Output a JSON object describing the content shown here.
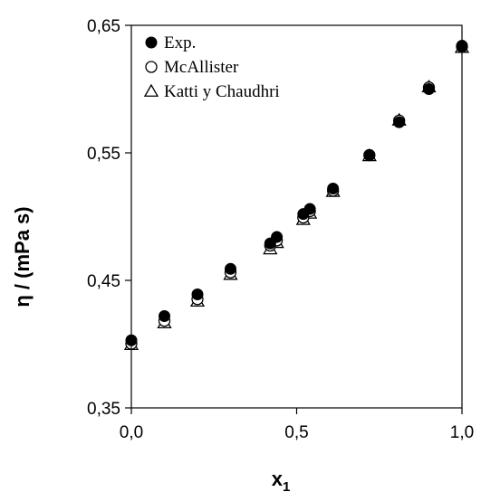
{
  "chart_data": {
    "type": "scatter",
    "xlabel": "x",
    "xlabel_sub": "1",
    "ylabel": "η / (mPa s)",
    "xlim": [
      0,
      1
    ],
    "ylim": [
      0.35,
      0.65
    ],
    "xticks": [
      0,
      0.5,
      1
    ],
    "xtick_labels": [
      "0,0",
      "0,5",
      "1,0"
    ],
    "yticks": [
      0.35,
      0.45,
      0.55,
      0.65
    ],
    "ytick_labels": [
      "0,35",
      "0,45",
      "0,55",
      "0,65"
    ],
    "grid": false,
    "legend_position": "top-left",
    "series": [
      {
        "name": "Exp.",
        "marker": "filled-circle",
        "color": "#000000",
        "x": [
          0.0,
          0.1,
          0.2,
          0.3,
          0.42,
          0.44,
          0.52,
          0.54,
          0.61,
          0.72,
          0.81,
          0.9,
          1.0
        ],
        "y": [
          0.403,
          0.422,
          0.439,
          0.459,
          0.479,
          0.484,
          0.502,
          0.506,
          0.522,
          0.548,
          0.574,
          0.6,
          0.634
        ]
      },
      {
        "name": "McAllister",
        "marker": "open-circle",
        "color": "#000000",
        "x": [
          0.0,
          0.1,
          0.2,
          0.3,
          0.42,
          0.44,
          0.52,
          0.54,
          0.61,
          0.72,
          0.81,
          0.9,
          1.0
        ],
        "y": [
          0.401,
          0.419,
          0.436,
          0.457,
          0.478,
          0.482,
          0.5,
          0.505,
          0.521,
          0.549,
          0.576,
          0.602,
          0.634
        ]
      },
      {
        "name": "Katti y Chaudhri",
        "marker": "open-triangle",
        "color": "#000000",
        "x": [
          0.0,
          0.1,
          0.2,
          0.3,
          0.42,
          0.44,
          0.52,
          0.54,
          0.61,
          0.72,
          0.81,
          0.9,
          1.0
        ],
        "y": [
          0.401,
          0.418,
          0.435,
          0.456,
          0.476,
          0.481,
          0.499,
          0.504,
          0.521,
          0.549,
          0.577,
          0.603,
          0.634
        ]
      }
    ]
  }
}
